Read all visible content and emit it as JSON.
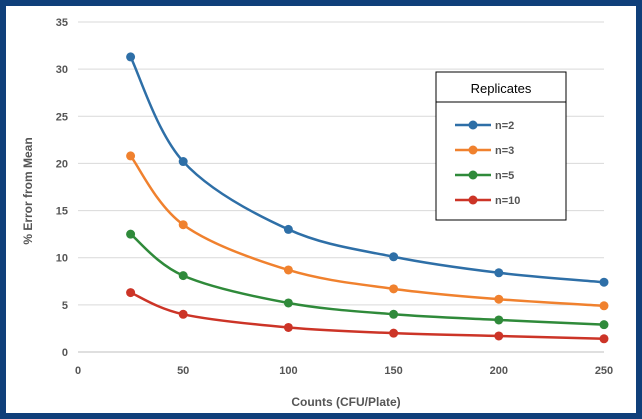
{
  "chart_data": {
    "type": "line",
    "xlabel": "Counts (CFU/Plate)",
    "ylabel": "% Error from Mean",
    "xlim": [
      0,
      250
    ],
    "ylim": [
      0,
      35
    ],
    "xticks": [
      0,
      50,
      100,
      150,
      200,
      250
    ],
    "yticks": [
      0,
      5,
      10,
      15,
      20,
      25,
      30,
      35
    ],
    "grid": true,
    "smooth": true,
    "legend": {
      "title": "Replicates",
      "position": "top-right"
    },
    "x": [
      25,
      50,
      100,
      150,
      200,
      250
    ],
    "series": [
      {
        "name": "n=2",
        "color": "#2e6fa7",
        "values": [
          31.3,
          20.2,
          13.0,
          10.1,
          8.4,
          7.4
        ]
      },
      {
        "name": "n=3",
        "color": "#f0812e",
        "values": [
          20.8,
          13.5,
          8.7,
          6.7,
          5.6,
          4.9
        ]
      },
      {
        "name": "n=5",
        "color": "#2f8a3a",
        "values": [
          12.5,
          8.1,
          5.2,
          4.0,
          3.4,
          2.9
        ]
      },
      {
        "name": "n=10",
        "color": "#cc3427",
        "values": [
          6.3,
          4.0,
          2.6,
          2.0,
          1.7,
          1.4
        ]
      }
    ]
  }
}
